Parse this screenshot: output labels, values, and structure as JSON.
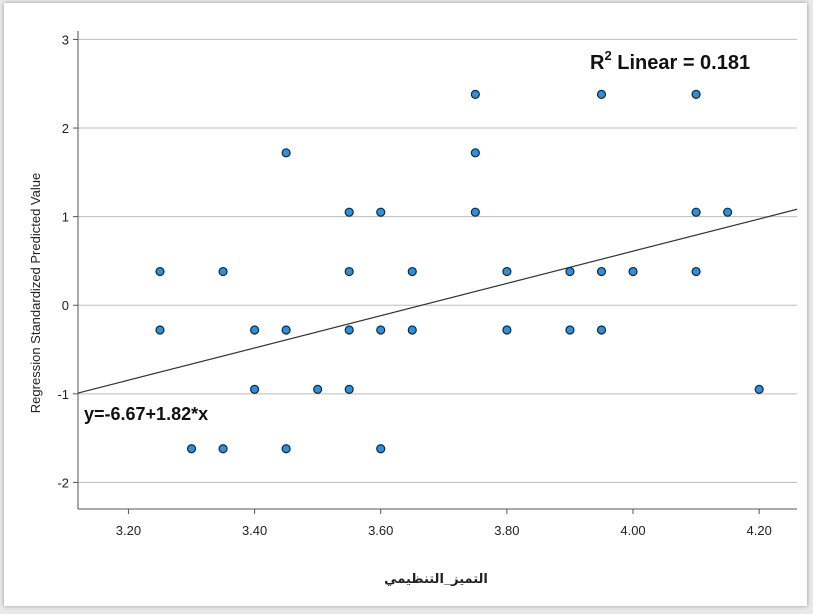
{
  "chart_data": {
    "type": "scatter",
    "title": "",
    "xlabel": "التميز_التنظيمي",
    "ylabel": "Regression Standardized Predicted Value",
    "xlim": [
      3.12,
      4.26
    ],
    "ylim": [
      -2.3,
      3.05
    ],
    "x_ticks": [
      "3.20",
      "3.40",
      "3.60",
      "3.80",
      "4.00",
      "4.20"
    ],
    "y_ticks": [
      "-2",
      "-1",
      "0",
      "1",
      "2",
      "3"
    ],
    "grid": "horizontal",
    "r2_label": {
      "prefix": "R",
      "sup": "2",
      "suffix": " Linear = 0.181"
    },
    "equation_label": "y=-6.67+1.82*x",
    "fit_line": {
      "intercept": -6.67,
      "slope": 1.82
    },
    "point_color": "#2f8fd8",
    "points": [
      [
        3.25,
        0.38
      ],
      [
        3.25,
        -0.28
      ],
      [
        3.3,
        -1.62
      ],
      [
        3.35,
        0.38
      ],
      [
        3.35,
        -1.62
      ],
      [
        3.4,
        -0.28
      ],
      [
        3.4,
        -0.95
      ],
      [
        3.45,
        1.72
      ],
      [
        3.45,
        -0.28
      ],
      [
        3.45,
        -1.62
      ],
      [
        3.5,
        -0.95
      ],
      [
        3.55,
        1.05
      ],
      [
        3.55,
        0.38
      ],
      [
        3.55,
        -0.28
      ],
      [
        3.55,
        -0.95
      ],
      [
        3.6,
        1.05
      ],
      [
        3.6,
        -0.28
      ],
      [
        3.6,
        -1.62
      ],
      [
        3.65,
        0.38
      ],
      [
        3.65,
        -0.28
      ],
      [
        3.75,
        2.38
      ],
      [
        3.75,
        1.72
      ],
      [
        3.75,
        1.05
      ],
      [
        3.8,
        0.38
      ],
      [
        3.8,
        -0.28
      ],
      [
        3.9,
        0.38
      ],
      [
        3.9,
        -0.28
      ],
      [
        3.95,
        2.38
      ],
      [
        3.95,
        0.38
      ],
      [
        3.95,
        -0.28
      ],
      [
        4.0,
        0.38
      ],
      [
        4.1,
        2.38
      ],
      [
        4.1,
        1.05
      ],
      [
        4.1,
        0.38
      ],
      [
        4.15,
        1.05
      ],
      [
        4.2,
        -0.95
      ]
    ]
  }
}
